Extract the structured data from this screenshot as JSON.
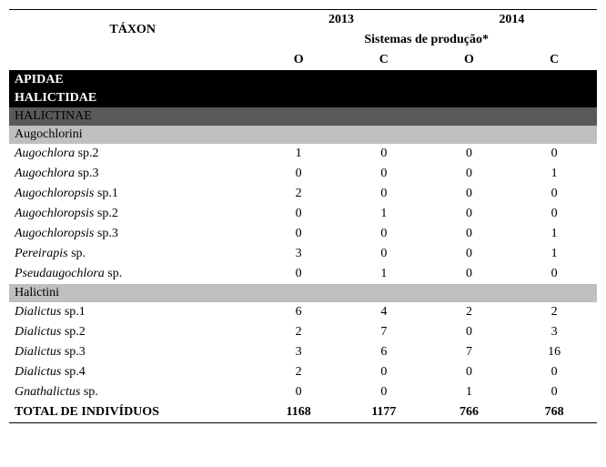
{
  "headers": {
    "taxon": "TÁXON",
    "year_left": "2013",
    "year_right": "2014",
    "systems": "Sistemas de produção*",
    "col_o": "O",
    "col_c": "C"
  },
  "families": {
    "apidae": "APIDAE",
    "halictidae": "HALICTIDAE"
  },
  "subfamily": {
    "halictinae": "HALICTINAE"
  },
  "tribes": {
    "augochlorini": "Augochlorini",
    "halictini": "Halictini"
  },
  "rows": {
    "augochlora_sp2": {
      "genus": "Augochlora",
      "sp": "sp.2",
      "v": [
        "1",
        "0",
        "0",
        "0"
      ]
    },
    "augochlora_sp3": {
      "genus": "Augochlora",
      "sp": "sp.3",
      "v": [
        "0",
        "0",
        "0",
        "1"
      ]
    },
    "augochloropsis_sp1": {
      "genus": "Augochloropsis",
      "sp": "sp.1",
      "v": [
        "2",
        "0",
        "0",
        "0"
      ]
    },
    "augochloropsis_sp2": {
      "genus": "Augochloropsis",
      "sp": "sp.2",
      "v": [
        "0",
        "1",
        "0",
        "0"
      ]
    },
    "augochloropsis_sp3": {
      "genus": "Augochloropsis",
      "sp": "sp.3",
      "v": [
        "0",
        "0",
        "0",
        "1"
      ]
    },
    "pereirapis_sp": {
      "genus": "Pereirapis",
      "sp": "sp.",
      "v": [
        "3",
        "0",
        "0",
        "1"
      ]
    },
    "pseudaugochlora_sp": {
      "genus": "Pseudaugochlora",
      "sp": "sp.",
      "v": [
        "0",
        "1",
        "0",
        "0"
      ]
    },
    "dialictus_sp1": {
      "genus": "Dialictus",
      "sp": "sp.1",
      "v": [
        "6",
        "4",
        "2",
        "2"
      ]
    },
    "dialictus_sp2": {
      "genus": "Dialictus",
      "sp": "sp.2",
      "v": [
        "2",
        "7",
        "0",
        "3"
      ]
    },
    "dialictus_sp3": {
      "genus": "Dialictus",
      "sp": "sp.3",
      "v": [
        "3",
        "6",
        "7",
        "16"
      ]
    },
    "dialictus_sp4": {
      "genus": "Dialictus",
      "sp": "sp.4",
      "v": [
        "2",
        "0",
        "0",
        "0"
      ]
    },
    "gnathalictus_sp": {
      "genus": "Gnathalictus",
      "sp": "sp.",
      "v": [
        "0",
        "0",
        "1",
        "0"
      ]
    }
  },
  "total": {
    "label": "TOTAL DE INDIVÍDUOS",
    "v": [
      "1168",
      "1177",
      "766",
      "768"
    ]
  }
}
